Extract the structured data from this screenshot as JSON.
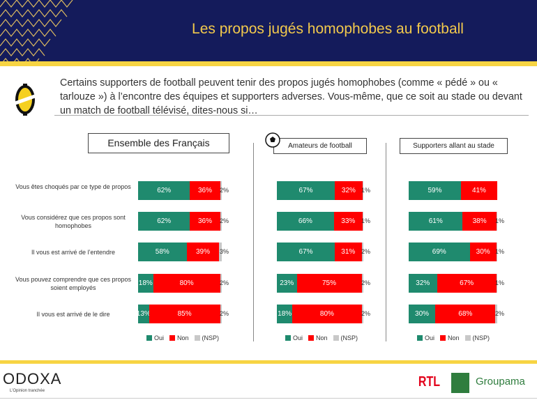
{
  "header": {
    "title": "Les propos jugés homophobes au football"
  },
  "question": "Certains supporters de football peuvent tenir des propos jugés homophobes (comme « pédé » ou « tarlouze ») à l’encontre des équipes et supporters adverses. Vous-même, que ce soit au stade ou devant un match de football télévisé, dites-nous si…",
  "colors": {
    "oui": "#1f8a6e",
    "non": "#ff0000",
    "nsp": "#c8c8c8",
    "navy": "#141b5b",
    "gold": "#f7d443"
  },
  "chart_data": {
    "type": "bar",
    "stacked": true,
    "orientation": "horizontal",
    "categories": [
      "Vous êtes choqués par ce type de propos",
      "Vous considérez que ces propos sont homophobes",
      "Il vous est arrivé de l’entendre",
      "Vous pouvez comprendre que ces propos soient employés",
      "Il vous est arrivé de le dire"
    ],
    "legend": [
      "Oui",
      "Non",
      "(NSP)"
    ],
    "panels": [
      {
        "title": "Ensemble des Français",
        "series": [
          {
            "name": "Oui",
            "values": [
              62,
              62,
              58,
              18,
              13
            ]
          },
          {
            "name": "Non",
            "values": [
              36,
              36,
              39,
              80,
              85
            ]
          },
          {
            "name": "(NSP)",
            "values": [
              2,
              2,
              3,
              2,
              2
            ]
          }
        ]
      },
      {
        "title": "Amateurs de football",
        "series": [
          {
            "name": "Oui",
            "values": [
              67,
              66,
              67,
              23,
              18
            ]
          },
          {
            "name": "Non",
            "values": [
              32,
              33,
              31,
              75,
              80
            ]
          },
          {
            "name": "(NSP)",
            "values": [
              1,
              1,
              2,
              2,
              2
            ]
          }
        ]
      },
      {
        "title": "Supporters allant au stade",
        "series": [
          {
            "name": "Oui",
            "values": [
              59,
              61,
              69,
              32,
              30
            ]
          },
          {
            "name": "Non",
            "values": [
              41,
              38,
              30,
              67,
              68
            ]
          },
          {
            "name": "(NSP)",
            "values": [
              0,
              1,
              1,
              1,
              2
            ]
          }
        ]
      }
    ]
  },
  "footer": {
    "odoxa": "ODOXA",
    "tagline": "L’Opinion tranchée",
    "rtl": "RTL",
    "groupama": "Groupama"
  }
}
